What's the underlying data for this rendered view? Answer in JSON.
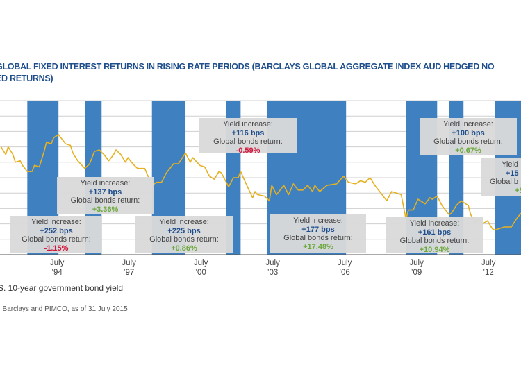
{
  "title": {
    "line1": "GLOBAL FIXED INTEREST RETURNS IN RISING RATE PERIODS (BARCLAYS GLOBAL AGGREGATE INDEX AUD HEDGED NO",
    "line2": "ED RETURNS)"
  },
  "legend_label": "S. 10-year government bond yield",
  "source": ": Barclays and PIMCO, as of 31 July 2015",
  "colors": {
    "bar": "#3f80c0",
    "line": "#e6b121",
    "title": "#1f4e8c",
    "negative": "#d1163d",
    "positive": "#6aa83a",
    "box": "#dadada"
  },
  "chart_data": {
    "type": "line",
    "grid": true,
    "xlim": [
      1992.2,
      2013.9
    ],
    "ylim": [
      0,
      10
    ],
    "x_ticks": [
      {
        "value": 1994.54,
        "label1": "July",
        "label2": "’94"
      },
      {
        "value": 1997.54,
        "label1": "July",
        "label2": "’97"
      },
      {
        "value": 2000.54,
        "label1": "July",
        "label2": "’00"
      },
      {
        "value": 2003.54,
        "label1": "July",
        "label2": "’03"
      },
      {
        "value": 2006.54,
        "label1": "July",
        "label2": "’06"
      },
      {
        "value": 2009.54,
        "label1": "July",
        "label2": "’09"
      },
      {
        "value": 2012.54,
        "label1": "July",
        "label2": "’12"
      }
    ],
    "rising_rate_periods": [
      [
        1993.3,
        1994.6
      ],
      [
        1995.7,
        1996.4
      ],
      [
        1998.5,
        1999.9
      ],
      [
        2001.6,
        2002.2
      ],
      [
        2003.3,
        2006.6
      ],
      [
        2009.1,
        2010.4
      ],
      [
        2010.9,
        2011.5
      ],
      [
        2012.8,
        2013.9
      ]
    ],
    "series": [
      {
        "x": [
          1992.2,
          1992.4,
          1992.5,
          1992.7,
          1992.8,
          1993.0,
          1993.1,
          1993.3,
          1993.5,
          1993.6,
          1993.8,
          1994.0,
          1994.1,
          1994.3,
          1994.4,
          1994.6,
          1994.7,
          1994.9,
          1995.1,
          1995.2,
          1995.4,
          1995.7,
          1995.9,
          1996.1,
          1996.3,
          1996.5,
          1996.7,
          1996.9,
          1997.0,
          1997.2,
          1997.4,
          1997.5,
          1997.7,
          1997.9,
          1998.2,
          1998.5,
          1998.7,
          1998.9,
          1999.1,
          1999.4,
          1999.6,
          1999.9,
          2000.1,
          2000.2,
          2000.5,
          2000.7,
          2000.9,
          2001.1,
          2001.3,
          2001.4,
          2001.7,
          2001.9,
          2002.1,
          2002.2,
          2002.4,
          2002.7,
          2002.8,
          2002.9,
          2003.2,
          2003.4,
          2003.5,
          2003.7,
          2004.0,
          2004.2,
          2004.4,
          2004.6,
          2004.8,
          2005.0,
          2005.2,
          2005.3,
          2005.5,
          2005.8,
          2006.2,
          2006.5,
          2006.7,
          2007.0,
          2007.2,
          2007.4,
          2007.6,
          2007.8,
          2008.0,
          2008.3,
          2008.5,
          2008.9,
          2009.1,
          2009.2,
          2009.4,
          2009.6,
          2009.9,
          2010.1,
          2010.2,
          2010.4,
          2010.6,
          2010.9,
          2011.0,
          2011.2,
          2011.4,
          2011.7,
          2011.8,
          2012.0,
          2012.1,
          2012.3,
          2012.5,
          2012.7,
          2012.8,
          2013.2,
          2013.5,
          2013.7,
          2013.9
        ],
        "y": [
          7.0,
          6.5,
          7.0,
          6.5,
          6.0,
          6.1,
          5.8,
          5.4,
          5.4,
          5.8,
          5.7,
          6.7,
          7.3,
          7.2,
          7.6,
          7.8,
          7.6,
          7.2,
          7.1,
          6.6,
          6.1,
          5.6,
          5.9,
          6.7,
          6.8,
          6.5,
          6.1,
          6.5,
          6.8,
          6.5,
          6.0,
          6.3,
          5.9,
          5.6,
          5.6,
          4.5,
          4.7,
          4.7,
          5.3,
          5.9,
          5.9,
          6.6,
          6.0,
          6.3,
          5.8,
          5.7,
          5.1,
          4.9,
          5.4,
          5.3,
          4.4,
          5.0,
          5.0,
          5.4,
          4.7,
          3.7,
          4.1,
          3.9,
          3.8,
          3.5,
          4.5,
          3.9,
          4.5,
          3.9,
          4.6,
          4.2,
          4.2,
          4.5,
          4.1,
          4.5,
          4.1,
          4.5,
          4.6,
          5.1,
          4.7,
          4.6,
          4.8,
          4.7,
          5.0,
          4.5,
          4.1,
          3.5,
          4.1,
          3.9,
          2.3,
          2.9,
          2.9,
          3.6,
          3.3,
          3.7,
          3.6,
          3.8,
          3.2,
          2.6,
          2.7,
          3.2,
          3.5,
          3.2,
          2.6,
          2.1,
          2.3,
          2.0,
          2.2,
          1.7,
          1.6,
          1.8,
          1.8,
          2.3,
          2.7
        ]
      }
    ],
    "annotations": [
      {
        "label": "Yield increase:",
        "bps": "+252 bps",
        "return_label": "Global bonds return:",
        "return": "-1.15%",
        "sign": "neg"
      },
      {
        "label": "Yield increase:",
        "bps": "+137 bps",
        "return_label": "Global bonds return:",
        "return": "+3.36%",
        "sign": "pos"
      },
      {
        "label": "Yield increase:",
        "bps": "+225 bps",
        "return_label": "Global bonds return:",
        "return": "+0.86%",
        "sign": "pos"
      },
      {
        "label": "Yield increase:",
        "bps": "+116 bps",
        "return_label": "Global bonds return:",
        "return": "-0.59%",
        "sign": "neg"
      },
      {
        "label": "Yield increase:",
        "bps": "+177 bps",
        "return_label": "Global bonds return:",
        "return": "+17.48%",
        "sign": "pos"
      },
      {
        "label": "Yield increase:",
        "bps": "+161 bps",
        "return_label": "Global bonds return:",
        "return": "+10.94%",
        "sign": "pos"
      },
      {
        "label": "Yield increase:",
        "bps": "+100 bps",
        "return_label": "Global bonds return:",
        "return": "+0.67%",
        "sign": "pos"
      },
      {
        "label": "Yield",
        "bps": "+15",
        "return_label": "Global b",
        "return": "+5",
        "sign": "pos"
      }
    ]
  }
}
